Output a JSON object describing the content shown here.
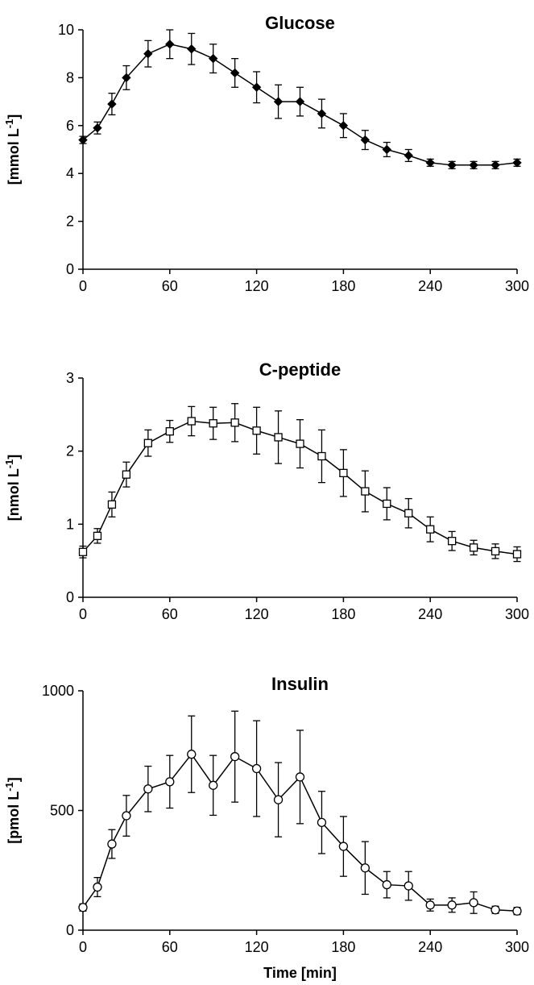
{
  "chart_data": [
    {
      "type": "line",
      "title": "Glucose",
      "ylabel": "[mmol L",
      "ylabel_sup": "-1",
      "ylabel_close": "]",
      "xlabel": "",
      "xlim": [
        0,
        300
      ],
      "ylim": [
        0,
        10
      ],
      "xticks": [
        0,
        60,
        120,
        180,
        240,
        300
      ],
      "yticks": [
        0,
        2,
        4,
        6,
        8,
        10
      ],
      "grid": false,
      "marker": "filled-diamond",
      "series": [
        {
          "x": [
            0,
            10,
            20,
            30,
            45,
            60,
            75,
            90,
            105,
            120,
            135,
            150,
            165,
            180,
            195,
            210,
            225,
            240,
            255,
            270,
            285,
            300
          ],
          "y": [
            5.4,
            5.9,
            6.9,
            8.0,
            9.0,
            9.4,
            9.2,
            8.8,
            8.2,
            7.6,
            7.0,
            7.0,
            6.5,
            6.0,
            5.4,
            5.0,
            4.75,
            4.45,
            4.35,
            4.35,
            4.35,
            4.45
          ],
          "error": [
            0.15,
            0.25,
            0.45,
            0.5,
            0.55,
            0.6,
            0.65,
            0.6,
            0.6,
            0.65,
            0.7,
            0.6,
            0.6,
            0.5,
            0.4,
            0.3,
            0.25,
            0.15,
            0.15,
            0.15,
            0.15,
            0.15
          ]
        }
      ]
    },
    {
      "type": "line",
      "title": "C-peptide",
      "ylabel": "[nmol L",
      "ylabel_sup": "-1",
      "ylabel_close": "]",
      "xlabel": "",
      "xlim": [
        0,
        300
      ],
      "ylim": [
        0,
        3
      ],
      "xticks": [
        0,
        60,
        120,
        180,
        240,
        300
      ],
      "yticks": [
        0,
        1,
        2,
        3
      ],
      "grid": false,
      "marker": "open-square",
      "series": [
        {
          "x": [
            0,
            10,
            20,
            30,
            45,
            60,
            75,
            90,
            105,
            120,
            135,
            150,
            165,
            180,
            195,
            210,
            225,
            240,
            255,
            270,
            285,
            300
          ],
          "y": [
            0.62,
            0.84,
            1.27,
            1.68,
            2.11,
            2.27,
            2.41,
            2.38,
            2.39,
            2.28,
            2.19,
            2.1,
            1.93,
            1.7,
            1.45,
            1.28,
            1.15,
            0.93,
            0.77,
            0.68,
            0.63,
            0.59
          ],
          "error": [
            0.08,
            0.1,
            0.17,
            0.17,
            0.18,
            0.15,
            0.2,
            0.22,
            0.26,
            0.32,
            0.36,
            0.33,
            0.36,
            0.32,
            0.28,
            0.22,
            0.2,
            0.17,
            0.13,
            0.1,
            0.1,
            0.1
          ]
        }
      ]
    },
    {
      "type": "line",
      "title": "Insulin",
      "ylabel": "[pmol L",
      "ylabel_sup": "-1",
      "ylabel_close": "]",
      "xlabel": "Time [min]",
      "xlim": [
        0,
        300
      ],
      "ylim": [
        0,
        1000
      ],
      "xticks": [
        0,
        60,
        120,
        180,
        240,
        300
      ],
      "yticks": [
        0,
        500,
        1000
      ],
      "grid": false,
      "marker": "open-circle",
      "series": [
        {
          "x": [
            0,
            10,
            20,
            30,
            45,
            60,
            75,
            90,
            105,
            120,
            135,
            150,
            165,
            180,
            195,
            210,
            225,
            240,
            255,
            270,
            285,
            300
          ],
          "y": [
            95,
            180,
            360,
            478,
            590,
            620,
            735,
            605,
            725,
            675,
            545,
            640,
            450,
            350,
            260,
            190,
            185,
            105,
            105,
            115,
            85,
            80
          ],
          "error": [
            15,
            40,
            60,
            85,
            95,
            110,
            160,
            125,
            190,
            200,
            155,
            195,
            130,
            125,
            110,
            55,
            60,
            25,
            30,
            45,
            15,
            15
          ]
        }
      ]
    }
  ]
}
